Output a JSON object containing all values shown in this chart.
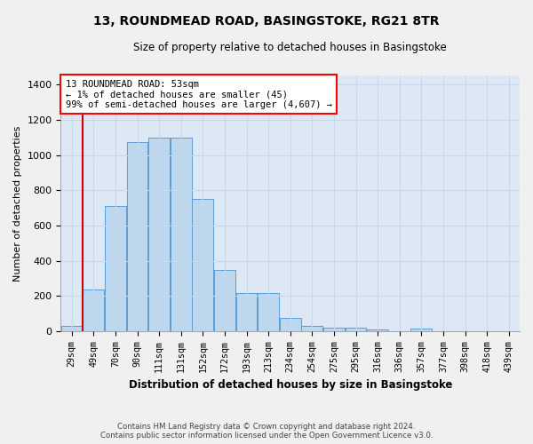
{
  "title_line1": "13, ROUNDMEAD ROAD, BASINGSTOKE, RG21 8TR",
  "title_line2": "Size of property relative to detached houses in Basingstoke",
  "xlabel": "Distribution of detached houses by size in Basingstoke",
  "ylabel": "Number of detached properties",
  "categories": [
    "29sqm",
    "49sqm",
    "70sqm",
    "90sqm",
    "111sqm",
    "131sqm",
    "152sqm",
    "172sqm",
    "193sqm",
    "213sqm",
    "234sqm",
    "254sqm",
    "275sqm",
    "295sqm",
    "316sqm",
    "336sqm",
    "357sqm",
    "377sqm",
    "398sqm",
    "418sqm",
    "439sqm"
  ],
  "values": [
    30,
    235,
    710,
    1075,
    1100,
    1100,
    750,
    350,
    215,
    215,
    75,
    30,
    20,
    20,
    10,
    0,
    15,
    0,
    0,
    0,
    0
  ],
  "bar_color": "#bdd7ee",
  "bar_edge_color": "#5b9bd5",
  "vline_color": "#cc0000",
  "vline_x_index": 0.5,
  "annotation_box_text": "13 ROUNDMEAD ROAD: 53sqm\n← 1% of detached houses are smaller (45)\n99% of semi-detached houses are larger (4,607) →",
  "ylim": [
    0,
    1450
  ],
  "yticks": [
    0,
    200,
    400,
    600,
    800,
    1000,
    1200,
    1400
  ],
  "background_color": "#dce9f5",
  "grid_color": "#c8d8ea",
  "footer_line1": "Contains HM Land Registry data © Crown copyright and database right 2024.",
  "footer_line2": "Contains public sector information licensed under the Open Government Licence v3.0."
}
